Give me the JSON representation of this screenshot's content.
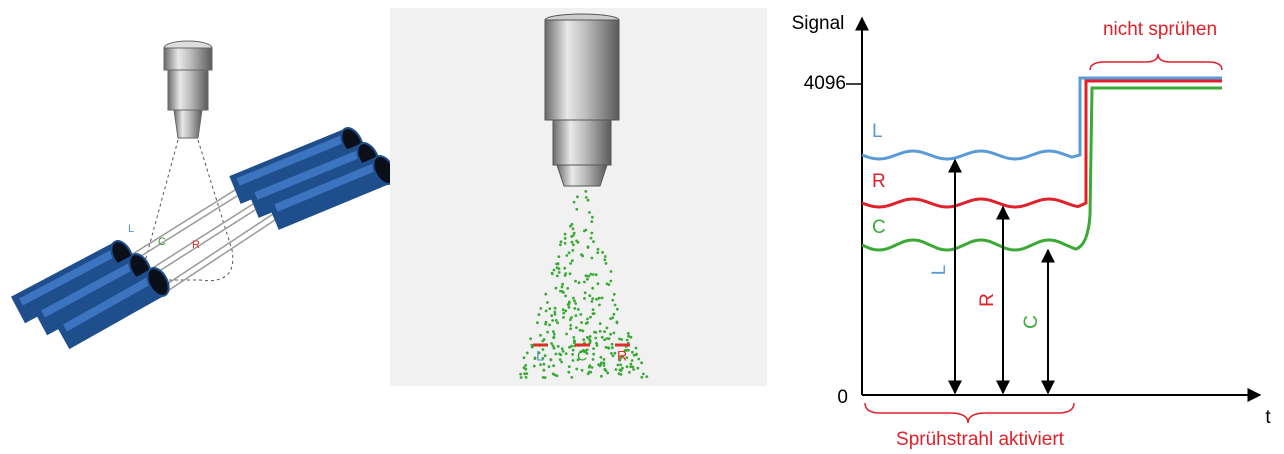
{
  "tube_illustration": {
    "labels": {
      "l": "L",
      "c": "C",
      "r": "R"
    }
  },
  "spray_view": {
    "labels": {
      "l": "L",
      "c": "C",
      "r": "R"
    }
  },
  "signal_diagram": {
    "y_axis_label": "Signal",
    "x_axis_label": "t",
    "ticks": {
      "top": "4096",
      "bottom": "0"
    },
    "curve_labels": {
      "l": "L",
      "r": "R",
      "c": "C"
    },
    "arrow_labels": {
      "l": "L",
      "r": "R",
      "c": "C"
    },
    "annotations": {
      "idle": "nicht sprühen",
      "active": "Sprühstrahl aktiviert"
    }
  }
}
